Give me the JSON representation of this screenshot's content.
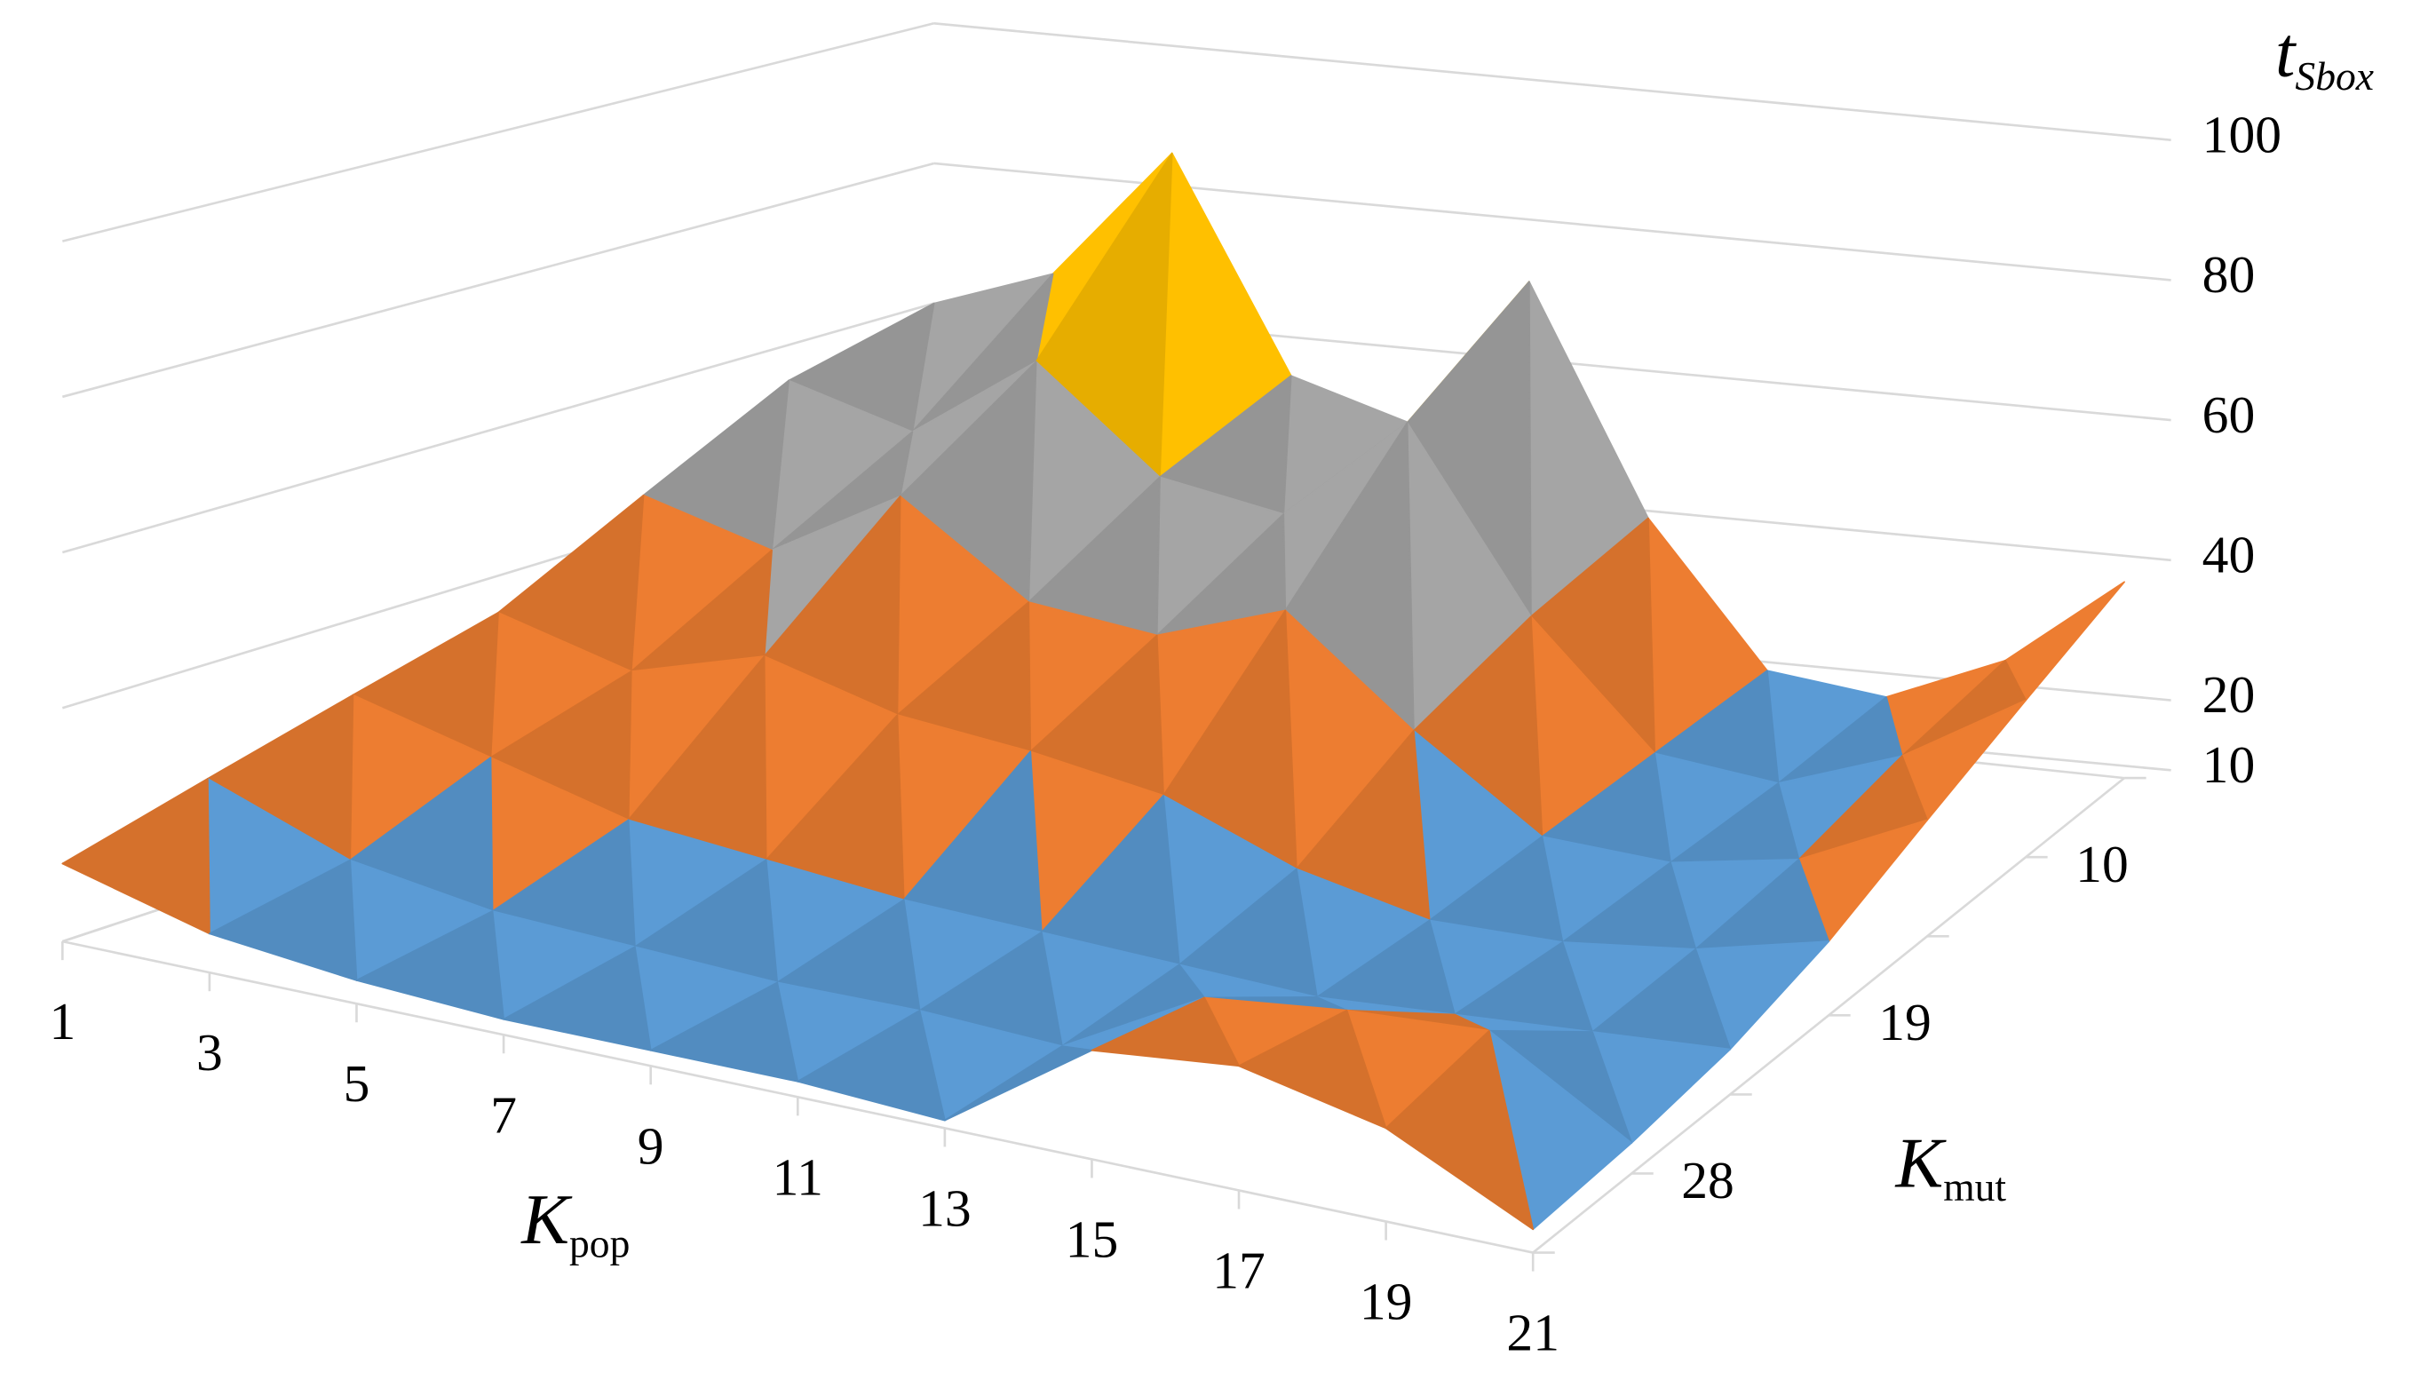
{
  "chart_data": {
    "type": "surface",
    "categories": [
      "1",
      "3",
      "5",
      "7",
      "9",
      "11",
      "13",
      "15",
      "17",
      "19",
      "21"
    ],
    "x_axis_title": {
      "text": "K",
      "subscript": "pop"
    },
    "y_axis_title": {
      "text": "K",
      "subscript": "mut"
    },
    "z_axis_title": {
      "text": "t",
      "subscript": "Sbox"
    },
    "series": [
      {
        "name": null,
        "values": [
          60,
          66,
          85,
          55,
          50,
          72,
          40,
          20,
          18,
          25,
          38
        ]
      },
      {
        "name": "10",
        "values": [
          55,
          50,
          62,
          48,
          45,
          60,
          35,
          18,
          16,
          22,
          32
        ]
      },
      {
        "name": null,
        "values": [
          45,
          40,
          50,
          38,
          36,
          42,
          28,
          16,
          15,
          18,
          26
        ]
      },
      {
        "name": "19",
        "values": [
          35,
          30,
          35,
          30,
          28,
          25,
          18,
          14,
          14,
          16,
          20
        ]
      },
      {
        "name": null,
        "values": [
          30,
          25,
          20,
          18,
          16,
          15,
          14,
          13,
          14,
          15,
          16
        ]
      },
      {
        "name": "28",
        "values": [
          25,
          18,
          15,
          14,
          13,
          13,
          12,
          22,
          24,
          25,
          14
        ]
      },
      {
        "name": null,
        "values": [
          20,
          15,
          13,
          12,
          12,
          12,
          11,
          24,
          26,
          22,
          13
        ]
      }
    ],
    "zlim": [
      10,
      100
    ],
    "zticks": [
      10,
      20,
      40,
      60,
      80,
      100
    ],
    "band_colors": [
      "#5b9bd5",
      "#ed7d31",
      "#a5a5a5",
      "#ffc000",
      "#4472c4"
    ],
    "grid": true
  }
}
